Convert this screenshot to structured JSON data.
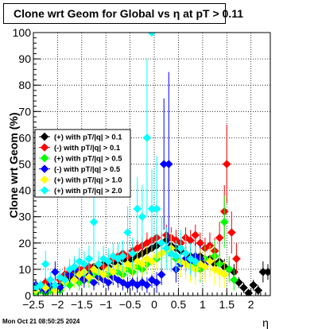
{
  "title_text": "Clone wrt Geom for Global vs  η at pT > 0.11",
  "timestamp": "Mon Oct 21 08:50:25 2024",
  "chart_data": {
    "type": "scatter",
    "title": "Clone wrt Geom for Global vs  η at pT > 0.11",
    "xlabel": "η",
    "ylabel": "Clone wrt Geom (%)",
    "xlim": [
      -2.5,
      2.4
    ],
    "ylim": [
      0,
      100
    ],
    "grid": true,
    "legend_position": "middle-left",
    "xticks": [
      -2.5,
      -2,
      -1.5,
      -1,
      -0.5,
      0,
      0.5,
      1,
      1.5,
      2
    ],
    "xtick_labels": [
      "−2.5",
      "−2",
      "−1.5",
      "−1",
      "−0.5",
      "0",
      "0.5",
      "1",
      "1.5",
      "2"
    ],
    "yticks": [
      0,
      10,
      20,
      30,
      40,
      50,
      60,
      70,
      80,
      90,
      100
    ],
    "series": [
      {
        "name": "(+) with pT/|q| > 0.1",
        "color": "#000000",
        "marker": "diamond",
        "points": [
          [
            -2.45,
            1,
            1
          ],
          [
            -2.35,
            3,
            2
          ],
          [
            -2.25,
            1,
            1
          ],
          [
            -2.15,
            3,
            2
          ],
          [
            -2.05,
            2,
            1
          ],
          [
            -1.95,
            4,
            2
          ],
          [
            -1.85,
            6,
            2
          ],
          [
            -1.75,
            7,
            3
          ],
          [
            -1.65,
            8,
            2
          ],
          [
            -1.55,
            9,
            2
          ],
          [
            -1.45,
            8,
            2
          ],
          [
            -1.35,
            10,
            2
          ],
          [
            -1.25,
            11,
            2
          ],
          [
            -1.15,
            10,
            2
          ],
          [
            -1.05,
            12,
            2
          ],
          [
            -0.95,
            11,
            2
          ],
          [
            -0.85,
            13,
            2
          ],
          [
            -0.75,
            12,
            2
          ],
          [
            -0.65,
            14,
            2
          ],
          [
            -0.55,
            13,
            2
          ],
          [
            -0.45,
            14,
            2
          ],
          [
            -0.35,
            15,
            2
          ],
          [
            -0.25,
            16,
            2
          ],
          [
            -0.15,
            17,
            3
          ],
          [
            -0.05,
            18,
            3
          ],
          [
            0.05,
            19,
            3
          ],
          [
            0.15,
            20,
            3
          ],
          [
            0.25,
            21,
            3
          ],
          [
            0.35,
            19,
            3
          ],
          [
            0.45,
            18,
            3
          ],
          [
            0.55,
            17,
            3
          ],
          [
            0.65,
            16,
            3
          ],
          [
            0.75,
            15,
            3
          ],
          [
            0.85,
            14,
            3
          ],
          [
            0.95,
            15,
            3
          ],
          [
            1.05,
            13,
            3
          ],
          [
            1.15,
            14,
            3
          ],
          [
            1.25,
            12,
            3
          ],
          [
            1.35,
            13,
            3
          ],
          [
            1.45,
            11,
            3
          ],
          [
            1.55,
            10,
            3
          ],
          [
            1.65,
            9,
            3
          ],
          [
            1.75,
            5,
            2
          ],
          [
            1.85,
            3,
            2
          ],
          [
            1.95,
            1,
            1
          ],
          [
            2.05,
            4,
            2
          ],
          [
            2.15,
            2,
            2
          ],
          [
            2.25,
            9,
            4
          ],
          [
            2.35,
            9,
            3
          ]
        ]
      },
      {
        "name": "(-) with pT/|q| > 0.1",
        "color": "#ff0000",
        "marker": "diamond",
        "points": [
          [
            -2.45,
            2,
            2
          ],
          [
            -2.25,
            5,
            2
          ],
          [
            -2.05,
            4,
            2
          ],
          [
            -1.95,
            6,
            3
          ],
          [
            -1.85,
            8,
            3
          ],
          [
            -1.75,
            9,
            3
          ],
          [
            -1.65,
            8,
            3
          ],
          [
            -1.55,
            10,
            3
          ],
          [
            -1.45,
            10,
            3
          ],
          [
            -1.35,
            11,
            3
          ],
          [
            -1.25,
            9,
            3
          ],
          [
            -1.15,
            12,
            3
          ],
          [
            -1.05,
            11,
            3
          ],
          [
            -0.95,
            13,
            3
          ],
          [
            -0.85,
            14,
            3
          ],
          [
            -0.75,
            15,
            3
          ],
          [
            -0.65,
            16,
            3
          ],
          [
            -0.55,
            15,
            3
          ],
          [
            -0.45,
            17,
            3
          ],
          [
            -0.35,
            18,
            3
          ],
          [
            -0.25,
            19,
            3
          ],
          [
            -0.15,
            20,
            4
          ],
          [
            -0.05,
            21,
            4
          ],
          [
            0.05,
            22,
            4
          ],
          [
            0.15,
            20,
            4
          ],
          [
            0.25,
            23,
            4
          ],
          [
            0.35,
            22,
            4
          ],
          [
            0.45,
            21,
            4
          ],
          [
            0.55,
            20,
            4
          ],
          [
            0.65,
            22,
            4
          ],
          [
            0.75,
            21,
            4
          ],
          [
            0.85,
            23,
            4
          ],
          [
            0.95,
            20,
            4
          ],
          [
            1.05,
            18,
            4
          ],
          [
            1.15,
            19,
            5
          ],
          [
            1.25,
            17,
            5
          ],
          [
            1.35,
            22,
            6
          ],
          [
            1.45,
            32,
            10
          ],
          [
            1.5,
            50,
            15
          ],
          [
            1.6,
            24,
            8
          ],
          [
            1.7,
            14,
            6
          ]
        ]
      },
      {
        "name": "(+) with pT/|q| > 0.5",
        "color": "#00ff00",
        "marker": "diamond",
        "points": [
          [
            -2.45,
            1,
            1
          ],
          [
            -2.35,
            2,
            1
          ],
          [
            -2.25,
            1,
            1
          ],
          [
            -2.15,
            2,
            2
          ],
          [
            -2.05,
            3,
            2
          ],
          [
            -1.95,
            2,
            2
          ],
          [
            -1.85,
            5,
            3
          ],
          [
            -1.75,
            4,
            2
          ],
          [
            -1.65,
            6,
            3
          ],
          [
            -1.55,
            5,
            3
          ],
          [
            -1.45,
            7,
            3
          ],
          [
            -1.35,
            6,
            3
          ],
          [
            -1.25,
            8,
            3
          ],
          [
            -1.15,
            7,
            3
          ],
          [
            -1.05,
            6,
            3
          ],
          [
            -0.95,
            8,
            3
          ],
          [
            -0.85,
            7,
            3
          ],
          [
            -0.75,
            9,
            3
          ],
          [
            -0.65,
            8,
            3
          ],
          [
            -0.55,
            10,
            3
          ],
          [
            -0.45,
            9,
            3
          ],
          [
            -0.35,
            11,
            4
          ],
          [
            -0.25,
            10,
            4
          ],
          [
            -0.15,
            12,
            4
          ],
          [
            -0.05,
            13,
            4
          ],
          [
            0.05,
            14,
            4
          ],
          [
            0.15,
            16,
            5
          ],
          [
            0.25,
            18,
            5
          ],
          [
            0.35,
            16,
            5
          ],
          [
            0.45,
            14,
            5
          ],
          [
            0.55,
            12,
            5
          ],
          [
            0.65,
            13,
            5
          ],
          [
            0.75,
            11,
            5
          ],
          [
            0.85,
            12,
            5
          ],
          [
            0.95,
            10,
            5
          ],
          [
            1.05,
            14,
            5
          ],
          [
            1.15,
            13,
            5
          ],
          [
            1.25,
            15,
            6
          ],
          [
            1.35,
            12,
            6
          ],
          [
            1.45,
            28,
            10
          ],
          [
            1.55,
            10,
            5
          ],
          [
            1.65,
            6,
            4
          ]
        ]
      },
      {
        "name": "(-) with pT/|q| > 0.5",
        "color": "#0000ff",
        "marker": "diamond",
        "points": [
          [
            -2.45,
            4,
            2
          ],
          [
            -2.35,
            3,
            2
          ],
          [
            -2.25,
            2,
            2
          ],
          [
            -2.15,
            4,
            2
          ],
          [
            -2.05,
            9,
            4
          ],
          [
            -1.95,
            3,
            2
          ],
          [
            -1.85,
            6,
            3
          ],
          [
            -1.75,
            8,
            3
          ],
          [
            -1.65,
            10,
            4
          ],
          [
            -1.55,
            7,
            3
          ],
          [
            -1.45,
            6,
            3
          ],
          [
            -1.35,
            8,
            4
          ],
          [
            -1.25,
            5,
            3
          ],
          [
            -1.15,
            7,
            3
          ],
          [
            -1.05,
            6,
            3
          ],
          [
            -0.95,
            5,
            3
          ],
          [
            -0.85,
            7,
            3
          ],
          [
            -0.75,
            6,
            3
          ],
          [
            -0.65,
            5,
            3
          ],
          [
            -0.55,
            4,
            3
          ],
          [
            -0.45,
            5,
            3
          ],
          [
            -0.35,
            4,
            3
          ],
          [
            -0.25,
            5,
            3
          ],
          [
            -0.15,
            4,
            3
          ],
          [
            -0.05,
            6,
            3
          ],
          [
            0.05,
            5,
            4
          ],
          [
            0.15,
            8,
            4
          ],
          [
            0.2,
            50,
            25
          ],
          [
            0.3,
            50,
            35
          ],
          [
            0.45,
            10,
            5
          ],
          [
            0.55,
            12,
            5
          ],
          [
            0.65,
            14,
            5
          ],
          [
            0.75,
            13,
            5
          ],
          [
            0.85,
            15,
            5
          ],
          [
            0.95,
            14,
            5
          ],
          [
            1.05,
            12,
            5
          ]
        ]
      },
      {
        "name": "(+) with pT/|q| > 1.0",
        "color": "#ffff00",
        "marker": "diamond",
        "points": [
          [
            -2.45,
            2,
            2
          ],
          [
            -2.25,
            3,
            2
          ],
          [
            -2.05,
            2,
            2
          ],
          [
            -1.85,
            5,
            3
          ],
          [
            -1.65,
            6,
            3
          ],
          [
            -1.55,
            8,
            4
          ],
          [
            -1.45,
            9,
            4
          ],
          [
            -1.35,
            7,
            3
          ],
          [
            -1.25,
            10,
            4
          ],
          [
            -1.15,
            9,
            4
          ],
          [
            -1.05,
            8,
            4
          ],
          [
            -0.95,
            10,
            4
          ],
          [
            -0.85,
            9,
            4
          ],
          [
            -0.75,
            11,
            4
          ],
          [
            -0.65,
            10,
            4
          ],
          [
            -0.55,
            12,
            4
          ],
          [
            -0.45,
            11,
            4
          ],
          [
            -0.35,
            13,
            4
          ],
          [
            -0.25,
            12,
            5
          ],
          [
            -0.15,
            14,
            5
          ],
          [
            -0.05,
            13,
            5
          ],
          [
            0.05,
            15,
            5
          ],
          [
            0.15,
            16,
            5
          ],
          [
            0.25,
            17,
            5
          ],
          [
            0.35,
            18,
            6
          ],
          [
            0.45,
            15,
            6
          ],
          [
            0.55,
            13,
            6
          ],
          [
            0.65,
            12,
            6
          ],
          [
            0.75,
            11,
            6
          ],
          [
            0.85,
            10,
            6
          ],
          [
            0.95,
            12,
            6
          ],
          [
            1.05,
            11,
            6
          ],
          [
            1.15,
            13,
            6
          ],
          [
            1.25,
            10,
            6
          ],
          [
            1.35,
            9,
            6
          ],
          [
            1.45,
            8,
            5
          ]
        ]
      },
      {
        "name": "(+) with pT/|q| > 2.0",
        "color": "#00ffff",
        "marker": "diamond",
        "points": [
          [
            -2.45,
            3,
            2
          ],
          [
            -2.35,
            4,
            2
          ],
          [
            -2.25,
            12,
            5
          ],
          [
            -2.15,
            6,
            3
          ],
          [
            -2.05,
            4,
            2
          ],
          [
            -1.95,
            7,
            3
          ],
          [
            -1.85,
            6,
            3
          ],
          [
            -1.75,
            10,
            4
          ],
          [
            -1.65,
            11,
            4
          ],
          [
            -1.55,
            13,
            5
          ],
          [
            -1.45,
            12,
            5
          ],
          [
            -1.35,
            14,
            5
          ],
          [
            -1.25,
            28,
            15
          ],
          [
            -1.15,
            12,
            5
          ],
          [
            -1.05,
            14,
            5
          ],
          [
            -0.95,
            13,
            5
          ],
          [
            -0.85,
            15,
            5
          ],
          [
            -0.75,
            14,
            6
          ],
          [
            -0.65,
            15,
            6
          ],
          [
            -0.55,
            24,
            10
          ],
          [
            -0.45,
            16,
            6
          ],
          [
            -0.35,
            33,
            12
          ],
          [
            -0.25,
            30,
            12
          ],
          [
            -0.15,
            60,
            30
          ],
          [
            -0.05,
            33,
            15
          ],
          [
            0.05,
            33,
            20
          ],
          [
            0.15,
            20,
            10
          ],
          [
            0.25,
            18,
            8
          ],
          [
            0.35,
            16,
            7
          ],
          [
            0.45,
            15,
            6
          ],
          [
            0.55,
            18,
            7
          ],
          [
            0.65,
            16,
            7
          ],
          [
            0.75,
            14,
            6
          ],
          [
            0.85,
            13,
            6
          ],
          [
            -0.05,
            100,
            0
          ]
        ]
      }
    ]
  }
}
